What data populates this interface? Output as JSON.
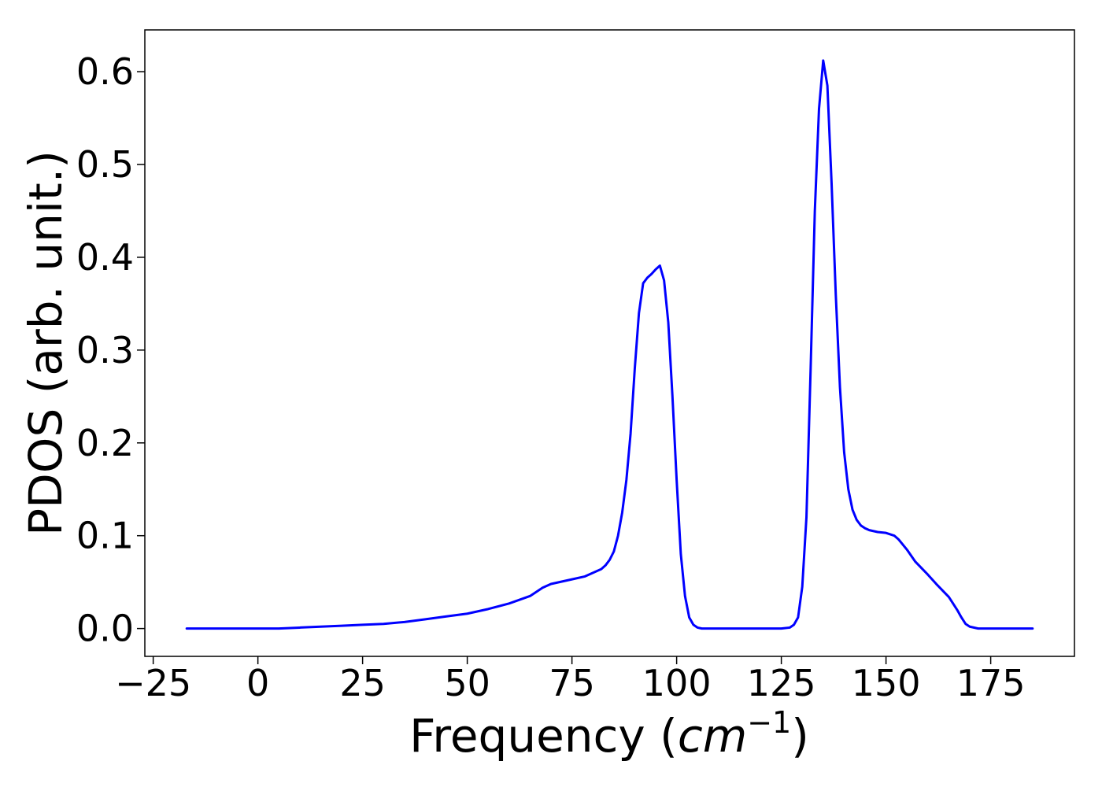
{
  "chart_data": {
    "type": "line",
    "title": "",
    "xlabel": {
      "prefix": "Frequency (",
      "math": "cm",
      "superscript": "−1",
      "suffix": ")"
    },
    "ylabel": "PDOS (arb. unit.)",
    "xlim": [
      -27,
      195
    ],
    "ylim": [
      -0.03,
      0.645
    ],
    "xticks": [
      -25,
      0,
      25,
      50,
      75,
      100,
      125,
      150,
      175
    ],
    "xtick_labels": [
      "−25",
      "0",
      "25",
      "50",
      "75",
      "100",
      "125",
      "150",
      "175"
    ],
    "yticks": [
      0.0,
      0.1,
      0.2,
      0.3,
      0.4,
      0.5,
      0.6
    ],
    "ytick_labels": [
      "0.0",
      "0.1",
      "0.2",
      "0.3",
      "0.4",
      "0.5",
      "0.6"
    ],
    "grid": false,
    "legend": "none",
    "series": [
      {
        "color": "#0000ff",
        "x": [
          -17,
          0,
          5,
          10,
          15,
          20,
          25,
          30,
          35,
          40,
          45,
          50,
          55,
          60,
          65,
          68,
          70,
          75,
          78,
          80,
          82,
          83,
          84,
          85,
          86,
          87,
          88,
          89,
          90,
          91,
          92,
          93,
          94,
          95,
          96,
          97,
          98,
          99,
          100,
          101,
          102,
          103,
          104,
          105,
          106,
          110,
          120,
          125,
          127,
          128,
          129,
          130,
          131,
          132,
          133,
          134,
          135,
          136,
          137,
          138,
          139,
          140,
          141,
          142,
          143,
          144,
          145,
          146,
          148,
          150,
          152,
          153,
          155,
          157,
          160,
          162,
          165,
          167,
          168,
          169,
          170,
          172,
          175,
          180,
          185
        ],
        "y": [
          0.0,
          0.0,
          0.0,
          0.001,
          0.002,
          0.003,
          0.004,
          0.005,
          0.007,
          0.01,
          0.013,
          0.016,
          0.021,
          0.027,
          0.035,
          0.044,
          0.048,
          0.053,
          0.056,
          0.06,
          0.064,
          0.068,
          0.074,
          0.083,
          0.1,
          0.125,
          0.16,
          0.21,
          0.28,
          0.34,
          0.372,
          0.378,
          0.382,
          0.387,
          0.391,
          0.375,
          0.33,
          0.25,
          0.16,
          0.08,
          0.035,
          0.012,
          0.004,
          0.001,
          0.0,
          0.0,
          0.0,
          0.0,
          0.001,
          0.004,
          0.012,
          0.045,
          0.12,
          0.28,
          0.45,
          0.56,
          0.612,
          0.585,
          0.48,
          0.36,
          0.26,
          0.19,
          0.15,
          0.128,
          0.117,
          0.111,
          0.108,
          0.106,
          0.104,
          0.103,
          0.1,
          0.096,
          0.085,
          0.072,
          0.058,
          0.048,
          0.034,
          0.02,
          0.012,
          0.005,
          0.002,
          0.0,
          0.0,
          0.0,
          0.0
        ]
      }
    ]
  }
}
